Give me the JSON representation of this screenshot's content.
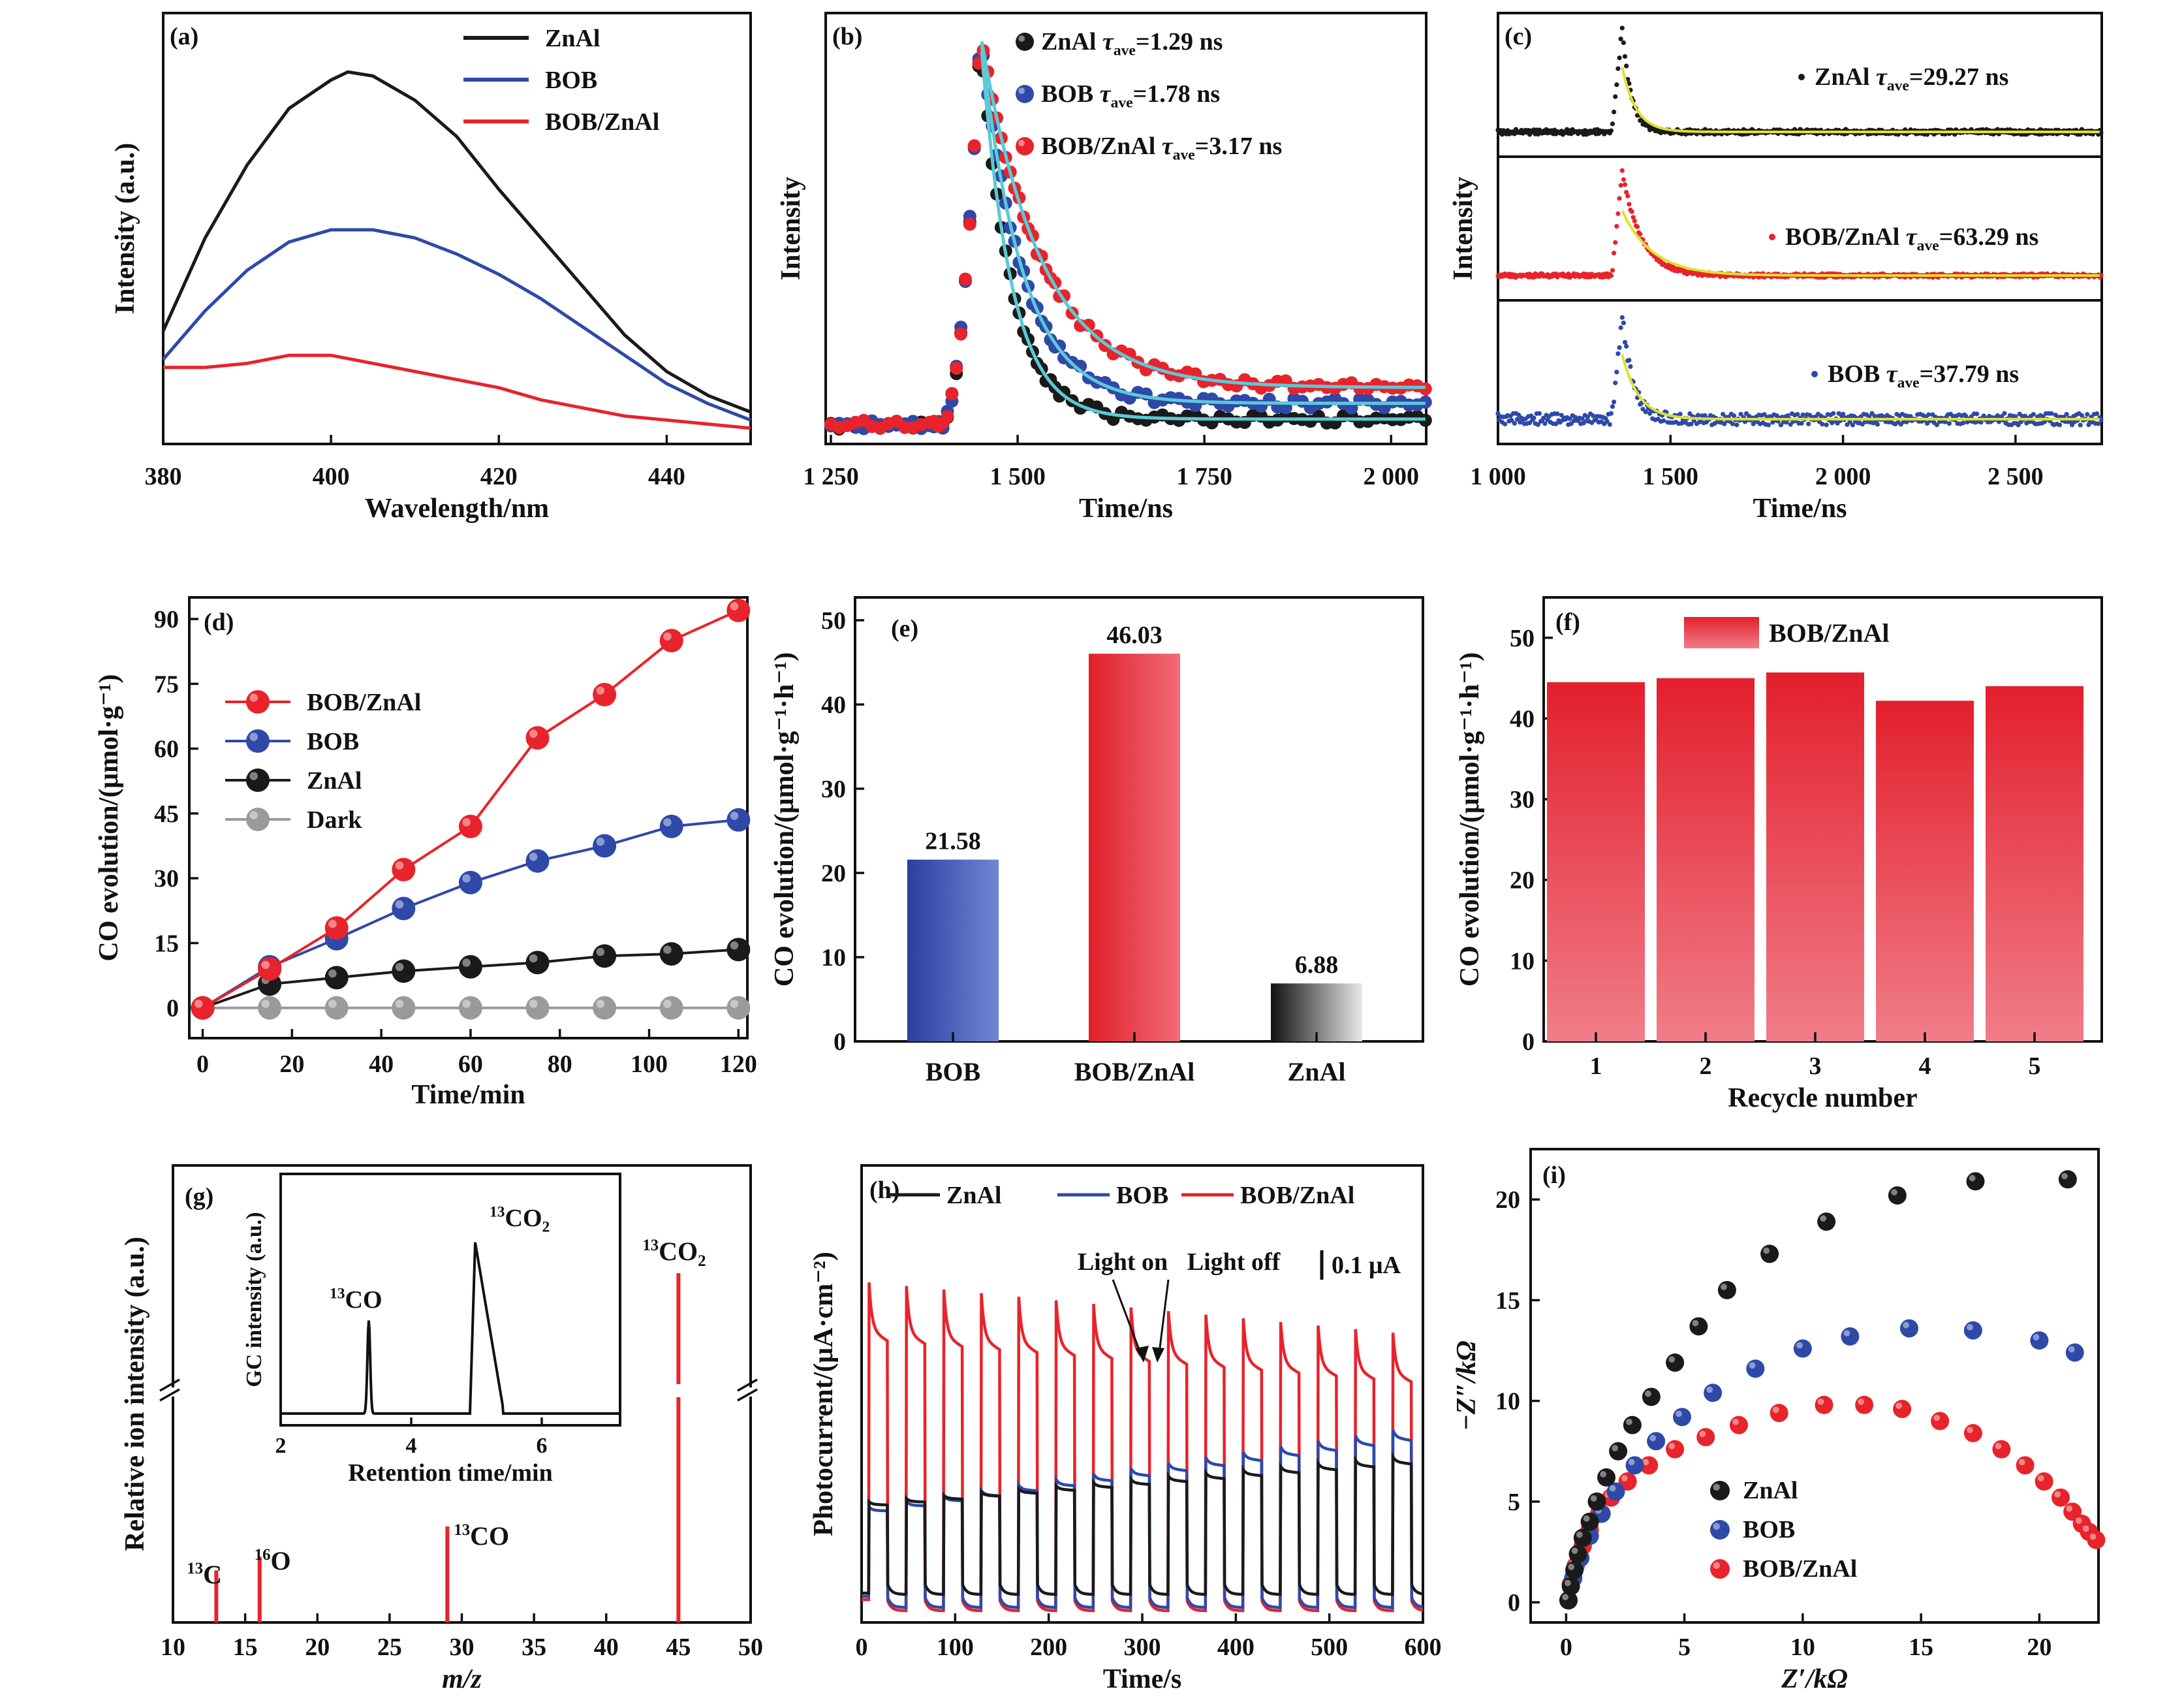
{
  "colors": {
    "black": "#1a1a1a",
    "blue": "#2e49a8",
    "red": "#e8232b",
    "gray": "#9a9a9a",
    "cyan": "#5cc9d6",
    "yellow": "#e0e030"
  },
  "chart_data": [
    {
      "panel": "(a)",
      "type": "line",
      "xlabel": "Wavelength/nm",
      "ylabel": "Intensity (a.u.)",
      "xlim": [
        380,
        450
      ],
      "ylim": [
        0,
        1
      ],
      "x_ticks": [
        "380",
        "400",
        "420",
        "440"
      ],
      "legend": "top-right",
      "series": [
        {
          "name": "ZnAl",
          "x": [
            380,
            385,
            390,
            395,
            400,
            402,
            405,
            410,
            415,
            420,
            425,
            430,
            435,
            440,
            445,
            450
          ],
          "y": [
            0.25,
            0.48,
            0.66,
            0.8,
            0.87,
            0.89,
            0.88,
            0.82,
            0.73,
            0.6,
            0.48,
            0.36,
            0.24,
            0.15,
            0.09,
            0.05
          ]
        },
        {
          "name": "BOB",
          "x": [
            380,
            385,
            390,
            395,
            400,
            405,
            410,
            415,
            420,
            425,
            430,
            435,
            440,
            445,
            450
          ],
          "y": [
            0.18,
            0.3,
            0.4,
            0.47,
            0.5,
            0.5,
            0.48,
            0.44,
            0.39,
            0.33,
            0.26,
            0.19,
            0.12,
            0.07,
            0.03
          ]
        },
        {
          "name": "BOB/ZnAl",
          "x": [
            380,
            385,
            390,
            395,
            400,
            405,
            410,
            415,
            420,
            425,
            430,
            435,
            440,
            445,
            450
          ],
          "y": [
            0.16,
            0.16,
            0.17,
            0.19,
            0.19,
            0.17,
            0.15,
            0.13,
            0.11,
            0.08,
            0.06,
            0.04,
            0.03,
            0.02,
            0.01
          ]
        }
      ]
    },
    {
      "panel": "(b)",
      "type": "scatter",
      "xlabel": "Time/ns",
      "ylabel": "Intensity",
      "xlim": [
        1250,
        2050
      ],
      "ylim": [
        0,
        1
      ],
      "x_ticks": [
        "1 250",
        "1 500",
        "1 750",
        "2 000"
      ],
      "legend": "top-right",
      "series": [
        {
          "name": "ZnAl",
          "label": "ZnAl τave=1.29 ns",
          "tau": "1.29 ns"
        },
        {
          "name": "BOB",
          "label": "BOB τave=1.78 ns",
          "tau": "1.78 ns"
        },
        {
          "name": "BOB/ZnAl",
          "label": "BOB/ZnAl τave=3.17 ns",
          "tau": "3.17 ns"
        }
      ]
    },
    {
      "panel": "(c)",
      "type": "scatter",
      "xlabel": "Time/ns",
      "ylabel": "Intensity",
      "xlim": [
        1000,
        2750
      ],
      "ylim": [
        0,
        1
      ],
      "x_ticks": [
        "1 000",
        "1 500",
        "2 000",
        "2 500"
      ],
      "series": [
        {
          "name": "ZnAl",
          "tau": "29.27 ns"
        },
        {
          "name": "BOB/ZnAl",
          "tau": "63.29 ns"
        },
        {
          "name": "BOB",
          "tau": "37.79 ns"
        }
      ]
    },
    {
      "panel": "(d)",
      "type": "line",
      "xlabel": "Time/min",
      "ylabel": "CO evolution/(μmol·g⁻¹)",
      "xlim": [
        -3,
        122
      ],
      "ylim": [
        -7,
        95
      ],
      "x_ticks": [
        0,
        20,
        40,
        60,
        80,
        100,
        120
      ],
      "y_ticks": [
        0,
        15,
        30,
        45,
        60,
        75,
        90
      ],
      "legend": "top-left",
      "x": [
        0,
        15,
        30,
        45,
        60,
        75,
        90,
        105,
        120
      ],
      "series": [
        {
          "name": "BOB/ZnAl",
          "values": [
            0,
            9,
            18.5,
            32,
            42,
            62.5,
            72.5,
            85,
            92
          ]
        },
        {
          "name": "BOB",
          "values": [
            0,
            9.5,
            16,
            23,
            29,
            34,
            37.5,
            42,
            43.5
          ]
        },
        {
          "name": "ZnAl",
          "values": [
            0,
            5.5,
            7,
            8.5,
            9.5,
            10.5,
            12,
            12.5,
            13.5
          ]
        },
        {
          "name": "Dark",
          "values": [
            0,
            0,
            0,
            0,
            0,
            0,
            0,
            0,
            0
          ]
        }
      ]
    },
    {
      "panel": "(e)",
      "type": "bar",
      "ylabel": "CO evolution/(μmol·g⁻¹·h⁻¹)",
      "ylim": [
        0,
        50
      ],
      "y_ticks": [
        0,
        10,
        20,
        30,
        40,
        50
      ],
      "categories": [
        "BOB",
        "BOB/ZnAl",
        "ZnAl"
      ],
      "values": [
        21.58,
        46.03,
        6.88
      ],
      "labels": [
        "21.58",
        "46.03",
        "6.88"
      ]
    },
    {
      "panel": "(f)",
      "type": "bar",
      "xlabel": "Recycle number",
      "ylabel": "CO evolution/(μmol·g⁻¹·h⁻¹)",
      "ylim": [
        0,
        55
      ],
      "y_ticks": [
        0,
        10,
        20,
        30,
        40,
        50
      ],
      "categories": [
        "1",
        "2",
        "3",
        "4",
        "5"
      ],
      "values": [
        44.5,
        45,
        45.7,
        42.2,
        44
      ],
      "legend": "BOB/ZnAl"
    },
    {
      "panel": "(g)",
      "type": "bar",
      "xlabel": "m/z",
      "ylabel": "Relative ion intensity (a.u.)",
      "xlim": [
        10,
        50
      ],
      "x_ticks": [
        10,
        15,
        20,
        25,
        30,
        35,
        40,
        45,
        50
      ],
      "peaks": [
        {
          "mz": 13,
          "label": "13C",
          "sup": "13",
          "base": "C",
          "h": 0.19
        },
        {
          "mz": 16,
          "label": "16O",
          "sup": "16",
          "base": "O",
          "h": 0.24
        },
        {
          "mz": 29,
          "label": "13CO",
          "sup": "13",
          "base": "CO",
          "h": 0.35
        },
        {
          "mz": 45,
          "label": "13CO2",
          "sup": "13",
          "base": "CO",
          "sub": "2",
          "h": 1.0
        }
      ],
      "inset": {
        "xlabel": "Retention time/min",
        "ylabel": "GC intensity (a.u.)",
        "xlim": [
          2,
          7.2
        ],
        "x_ticks": [
          2,
          4,
          6
        ],
        "peaks": [
          {
            "label": "13CO",
            "sup": "13",
            "base": "CO",
            "t": 3.35
          },
          {
            "label": "13CO2",
            "sup": "13",
            "base": "CO",
            "sub": "2",
            "t": 4.95
          }
        ]
      }
    },
    {
      "panel": "(h)",
      "type": "line",
      "xlabel": "Time/s",
      "ylabel": "Photocurrent/(μA·cm⁻²)",
      "xlim": [
        0,
        600
      ],
      "x_ticks": [
        0,
        100,
        200,
        300,
        400,
        500,
        600
      ],
      "legend": "top",
      "series": [
        {
          "name": "ZnAl"
        },
        {
          "name": "BOB"
        },
        {
          "name": "BOB/ZnAl"
        }
      ],
      "annotations": [
        "Light on",
        "Light off",
        "0.1 μA"
      ]
    },
    {
      "panel": "(i)",
      "type": "scatter",
      "xlabel": "Z′/kΩ",
      "ylabel": "−Z″/kΩ",
      "xlim": [
        -1.5,
        22.5
      ],
      "ylim": [
        -1,
        22.5
      ],
      "x_ticks": [
        0,
        5,
        10,
        15,
        20
      ],
      "y_ticks": [
        0,
        5,
        10,
        15,
        20
      ],
      "legend": "bottom-left",
      "series": [
        {
          "name": "ZnAl",
          "x": [
            0.1,
            0.2,
            0.35,
            0.5,
            0.7,
            1.0,
            1.3,
            1.7,
            2.2,
            2.8,
            3.6,
            4.6,
            5.6,
            6.8,
            8.6,
            11,
            14,
            17.3,
            21.2
          ],
          "y": [
            0.1,
            0.8,
            1.6,
            2.4,
            3.2,
            4,
            5,
            6.2,
            7.5,
            8.8,
            10.2,
            11.9,
            13.7,
            15.5,
            17.3,
            18.9,
            20.2,
            20.9,
            21
          ]
        },
        {
          "name": "BOB",
          "x": [
            0.1,
            0.3,
            0.6,
            1.0,
            1.5,
            2.1,
            2.9,
            3.8,
            4.9,
            6.2,
            8,
            10,
            12,
            14.5,
            17.2,
            20,
            21.5
          ],
          "y": [
            0.1,
            1.2,
            2.2,
            3.3,
            4.4,
            5.5,
            6.8,
            8,
            9.2,
            10.4,
            11.6,
            12.6,
            13.2,
            13.6,
            13.5,
            13,
            12.4
          ]
        },
        {
          "name": "BOB/ZnAl",
          "x": [
            0.1,
            0.2,
            0.4,
            0.7,
            1.0,
            1.4,
            1.9,
            2.6,
            3.5,
            4.6,
            5.9,
            7.3,
            9,
            10.9,
            12.6,
            14.2,
            15.8,
            17.2,
            18.4,
            19.4,
            20.2,
            20.9,
            21.4,
            21.8,
            22.1,
            22.4
          ],
          "y": [
            0.1,
            0.9,
            1.8,
            2.8,
            3.6,
            4.4,
            5.2,
            6,
            6.8,
            7.6,
            8.2,
            8.8,
            9.4,
            9.8,
            9.8,
            9.6,
            9,
            8.4,
            7.6,
            6.8,
            6,
            5.2,
            4.5,
            3.9,
            3.5,
            3.1
          ]
        }
      ]
    }
  ]
}
